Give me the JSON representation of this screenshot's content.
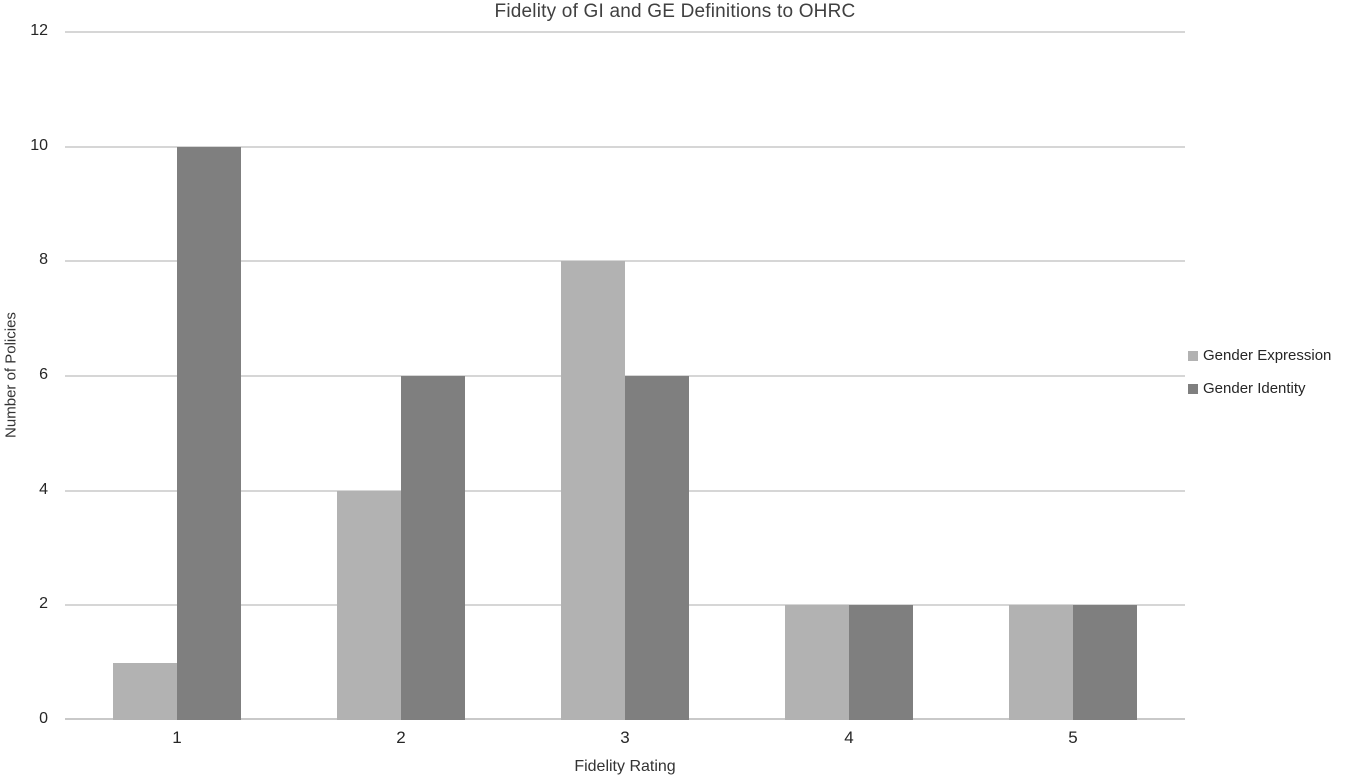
{
  "title": "Fidelity of GI and GE Definitions to OHRC",
  "colors": {
    "gender_expression": "#b2b2b2",
    "gender_identity": "#7f7f7f",
    "gridline": "#d6d6d6",
    "axis_line": "#c9c9c9",
    "title_text": "#404040",
    "tick_text": "#262626"
  },
  "chart_data": {
    "type": "bar",
    "title": "Fidelity of GI and GE Definitions to OHRC",
    "categories": [
      "1",
      "2",
      "3",
      "4",
      "5"
    ],
    "series": [
      {
        "name": "Gender Expression",
        "values": [
          1,
          4,
          8,
          2,
          2
        ],
        "color": "#b2b2b2"
      },
      {
        "name": "Gender Identity",
        "values": [
          10,
          6,
          6,
          2,
          2
        ],
        "color": "#7f7f7f"
      }
    ],
    "xlabel": "Fidelity Rating",
    "ylabel": "Number of Policies",
    "ylim": [
      0,
      12
    ],
    "ytick_step": 2,
    "yticks": [
      "0",
      "2",
      "4",
      "6",
      "8",
      "10",
      "12"
    ],
    "grid": true,
    "legend_position": "right"
  }
}
